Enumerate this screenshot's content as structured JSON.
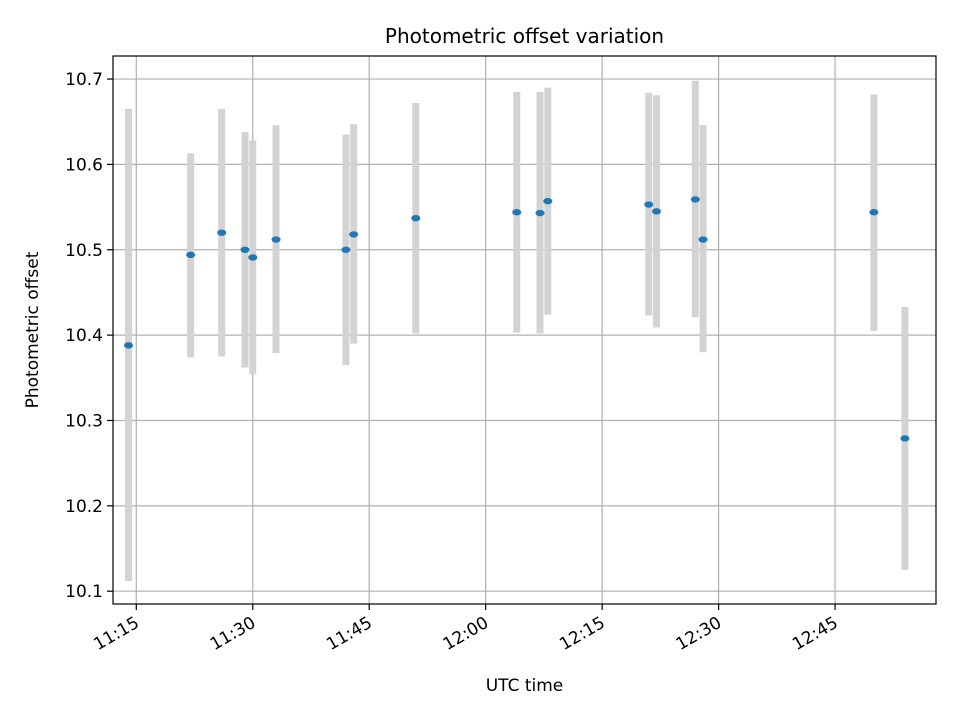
{
  "chart_data": {
    "type": "scatter",
    "title": "Photometric offset variation",
    "xlabel": "UTC time",
    "ylabel": "Photometric offset",
    "x_axis_type": "time",
    "xlim": [
      "11:12",
      "12:58"
    ],
    "ylim": [
      10.085,
      10.727
    ],
    "x_ticks": [
      "11:15",
      "11:30",
      "11:45",
      "12:00",
      "12:15",
      "12:30",
      "12:45"
    ],
    "y_ticks": [
      "10.1",
      "10.2",
      "10.3",
      "10.4",
      "10.5",
      "10.6",
      "10.7"
    ],
    "grid": true,
    "colors": {
      "point": "#1f77b4",
      "errorbar": "#d3d3d3",
      "grid": "#b0b0b0"
    },
    "series": [
      {
        "points": [
          {
            "x": "11:14",
            "y": 10.388,
            "ylow": 10.112,
            "yhigh": 10.665
          },
          {
            "x": "11:22",
            "y": 10.494,
            "ylow": 10.374,
            "yhigh": 10.613
          },
          {
            "x": "11:26",
            "y": 10.52,
            "ylow": 10.375,
            "yhigh": 10.665
          },
          {
            "x": "11:29",
            "y": 10.5,
            "ylow": 10.362,
            "yhigh": 10.638
          },
          {
            "x": "11:30",
            "y": 10.491,
            "ylow": 10.354,
            "yhigh": 10.628
          },
          {
            "x": "11:33",
            "y": 10.512,
            "ylow": 10.379,
            "yhigh": 10.646
          },
          {
            "x": "11:42",
            "y": 10.5,
            "ylow": 10.365,
            "yhigh": 10.635
          },
          {
            "x": "11:43",
            "y": 10.518,
            "ylow": 10.39,
            "yhigh": 10.647
          },
          {
            "x": "11:51",
            "y": 10.537,
            "ylow": 10.402,
            "yhigh": 10.672
          },
          {
            "x": "12:04",
            "y": 10.544,
            "ylow": 10.403,
            "yhigh": 10.685
          },
          {
            "x": "12:07",
            "y": 10.543,
            "ylow": 10.402,
            "yhigh": 10.685
          },
          {
            "x": "12:08",
            "y": 10.557,
            "ylow": 10.424,
            "yhigh": 10.69
          },
          {
            "x": "12:21",
            "y": 10.553,
            "ylow": 10.423,
            "yhigh": 10.684
          },
          {
            "x": "12:22",
            "y": 10.545,
            "ylow": 10.409,
            "yhigh": 10.681
          },
          {
            "x": "12:27",
            "y": 10.559,
            "ylow": 10.421,
            "yhigh": 10.698
          },
          {
            "x": "12:28",
            "y": 10.512,
            "ylow": 10.38,
            "yhigh": 10.646
          },
          {
            "x": "12:50",
            "y": 10.544,
            "ylow": 10.405,
            "yhigh": 10.682
          },
          {
            "x": "12:54",
            "y": 10.279,
            "ylow": 10.125,
            "yhigh": 10.433
          }
        ]
      }
    ]
  }
}
